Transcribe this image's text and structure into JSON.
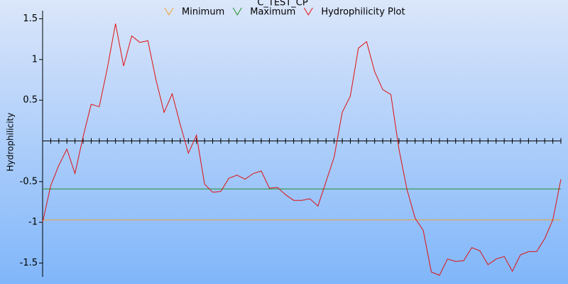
{
  "chart_data": {
    "type": "line",
    "title": "C_TEST_CP",
    "y_label": "Hydrophilicity",
    "categories": [
      null,
      null,
      null,
      null,
      null,
      null,
      null,
      null,
      null,
      null,
      null,
      null,
      null,
      null,
      null,
      null,
      null,
      null,
      null,
      null,
      null,
      null,
      null,
      null,
      null,
      null,
      null,
      null,
      null,
      null,
      null,
      null,
      null,
      null,
      null,
      null,
      null,
      null,
      null,
      null,
      null,
      null,
      null,
      null,
      null,
      null,
      null,
      null,
      null,
      null,
      null,
      null,
      null,
      null,
      null,
      null,
      null,
      null,
      null,
      null,
      null,
      null,
      null,
      null,
      null
    ],
    "hlines": [
      {
        "name": "Minimum",
        "color": "#f0a030",
        "value": -0.97
      },
      {
        "name": "Maximum",
        "color": "#20902a",
        "value": -0.59
      }
    ],
    "series": [
      {
        "name": "Hydrophilicity Plot",
        "color": "#e01010",
        "values": [
          -1.0,
          -0.55,
          -0.3,
          -0.1,
          -0.4,
          0.05,
          0.45,
          0.42,
          0.9,
          1.44,
          0.92,
          1.29,
          1.21,
          1.23,
          0.75,
          0.35,
          0.58,
          0.2,
          -0.15,
          0.07,
          -0.53,
          -0.63,
          -0.62,
          -0.46,
          -0.42,
          -0.47,
          -0.4,
          -0.37,
          -0.58,
          -0.57,
          -0.66,
          -0.73,
          -0.73,
          -0.71,
          -0.8,
          -0.5,
          -0.2,
          0.35,
          0.55,
          1.14,
          1.22,
          0.85,
          0.63,
          0.57,
          -0.1,
          -0.6,
          -0.95,
          -1.1,
          -1.61,
          -1.65,
          -1.45,
          -1.48,
          -1.47,
          -1.31,
          -1.35,
          -1.52,
          -1.45,
          -1.42,
          -1.6,
          -1.4,
          -1.36,
          -1.36,
          -1.2,
          -0.97,
          -0.47
        ]
      }
    ],
    "ylim": [
      -1.67,
      1.6
    ],
    "yticks": [
      -1.5,
      -1,
      -0.5,
      0.5,
      1,
      1.5
    ],
    "x_axis_at": 0
  }
}
